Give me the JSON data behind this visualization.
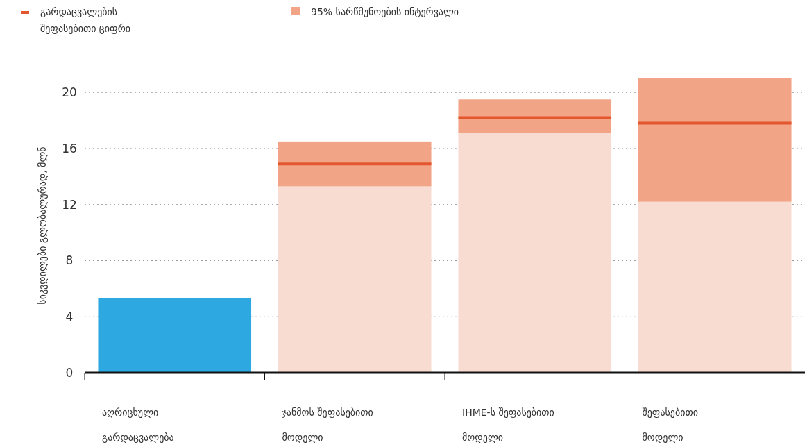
{
  "chart_data": {
    "type": "bar",
    "stacked": true,
    "ylabel": "სიკვდილები გლობალურად, მლნ",
    "categories": [
      "აღრიცხული გარდაცვალება",
      "ჯანმოს შეფასებითი მოდელი",
      "IHME-ს შეფასებითი მოდელი",
      "შეფასებითი მოდელი"
    ],
    "series": [
      {
        "color": "#2ea8e0",
        "values": [
          5.3,
          null,
          null,
          null
        ]
      },
      {
        "color": "#f8dcd1",
        "values": [
          null,
          13.3,
          17.1,
          12.2
        ]
      },
      {
        "name": "95% სარწმუნოების ინტერვალი",
        "color": "#f2a487",
        "values": [
          null,
          3.2,
          2.4,
          8.8
        ]
      },
      {
        "name": "გარდაცვალების შეფასებითი ციფრი",
        "type": "box",
        "color": "#e4572e",
        "boxes": [
          null,
          {
            "low": 14.9,
            "q1": 14.9,
            "median": 14.9,
            "q3": 14.9,
            "high": 14.9
          },
          {
            "low": 18.2,
            "q1": 18.2,
            "median": 18.2,
            "q3": 18.2,
            "high": 18.2
          },
          {
            "low": 17.8,
            "q1": 17.8,
            "median": 17.8,
            "q3": 17.8,
            "high": 17.8
          }
        ]
      }
    ],
    "ylim": [
      0,
      21
    ],
    "yticks": [
      0,
      4,
      8,
      12,
      16,
      20
    ],
    "grid": "y",
    "legend": "top left"
  }
}
